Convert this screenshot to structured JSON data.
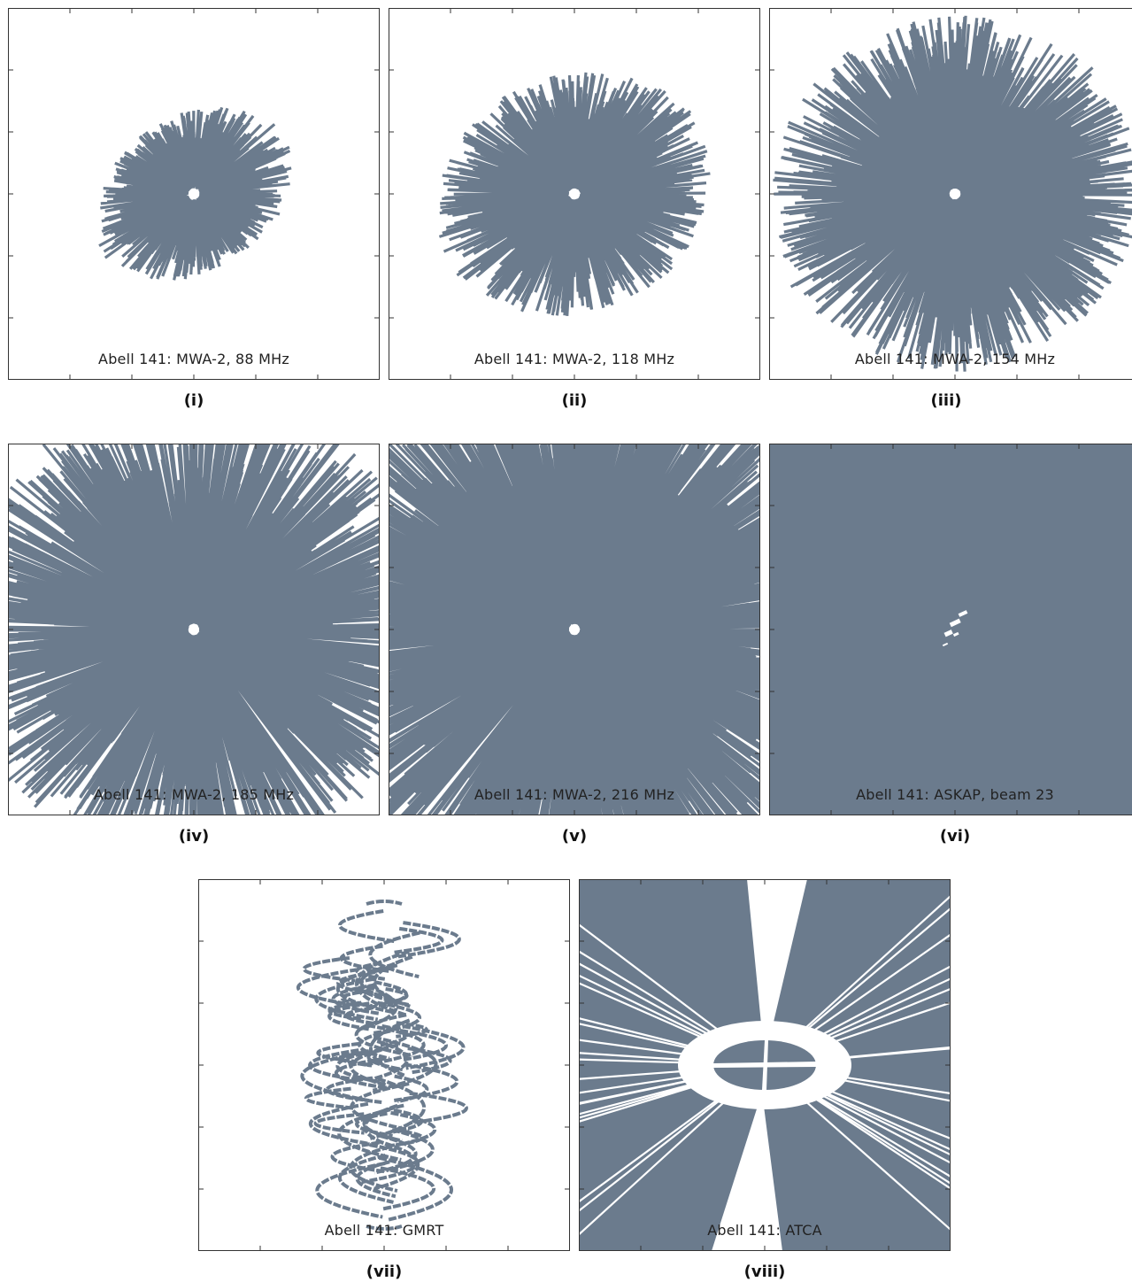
{
  "colors": {
    "fill": "#6b7b8d",
    "background": "#ffffff",
    "frame": "#333333"
  },
  "panels": [
    {
      "id": "i",
      "caption": "Abell 141: MWA-2, 88 MHz",
      "label": "(i)"
    },
    {
      "id": "ii",
      "caption": "Abell 141: MWA-2, 118 MHz",
      "label": "(ii)"
    },
    {
      "id": "iii",
      "caption": "Abell 141: MWA-2, 154 MHz",
      "label": "(iii)"
    },
    {
      "id": "iv",
      "caption": "Abell 141: MWA-2, 185 MHz",
      "label": "(iv)"
    },
    {
      "id": "v",
      "caption": "Abell 141: MWA-2, 216 MHz",
      "label": "(v)"
    },
    {
      "id": "vi",
      "caption": "Abell 141: ASKAP, beam 23",
      "label": "(vi)"
    },
    {
      "id": "vii",
      "caption": "Abell 141: GMRT",
      "label": "(vii)"
    },
    {
      "id": "viii",
      "caption": "Abell 141: ATCA",
      "label": "(viii)"
    }
  ]
}
